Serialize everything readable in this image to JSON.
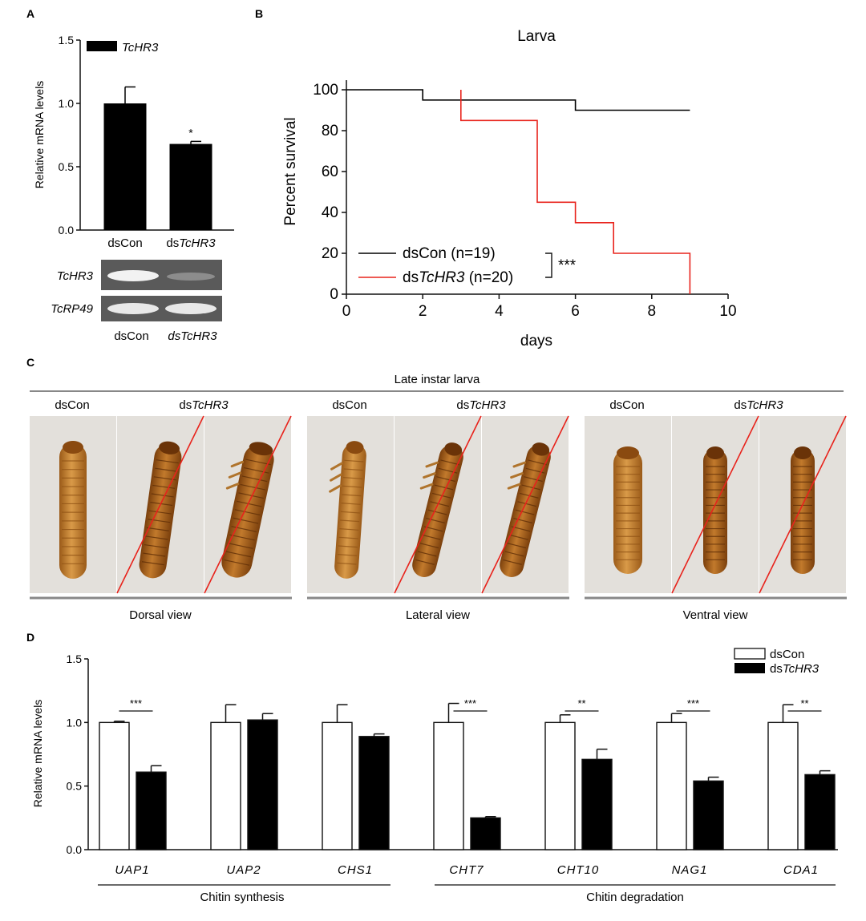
{
  "panels": {
    "a": "A",
    "b": "B",
    "c": "C",
    "d": "D"
  },
  "chart_data": [
    {
      "id": "A",
      "type": "bar",
      "ylabel": "Relative mRNA levels",
      "ylim": [
        0,
        1.5
      ],
      "yticks": [
        "0.0",
        "0.5",
        "1.0",
        "1.5"
      ],
      "categories": [
        "dsCon",
        "dsTcHR3"
      ],
      "category_labels": [
        {
          "prefix": "dsCon",
          "italic": ""
        },
        {
          "prefix": "ds",
          "italic": "TcHR3"
        }
      ],
      "values": [
        1.0,
        0.68
      ],
      "errors": [
        0.13,
        0.02
      ],
      "legend": "TcHR3",
      "significance": [
        "",
        "*"
      ]
    },
    {
      "id": "B",
      "type": "line",
      "title": "Larva",
      "xlabel": "days",
      "ylabel": "Percent survival",
      "xlim": [
        0,
        10
      ],
      "ylim": [
        0,
        100
      ],
      "xticks": [
        "0",
        "2",
        "4",
        "6",
        "8",
        "10"
      ],
      "yticks": [
        "0",
        "20",
        "40",
        "60",
        "80",
        "100"
      ],
      "series": [
        {
          "name": "dsCon (n=19)",
          "legend_prefix": "dsCon (n=19)",
          "legend_italic": "",
          "legend_suffix": "",
          "color": "#000000",
          "points": [
            [
              0,
              100
            ],
            [
              2,
              100
            ],
            [
              2,
              95
            ],
            [
              6,
              95
            ],
            [
              6,
              90
            ],
            [
              9,
              90
            ]
          ]
        },
        {
          "name": "dsTcHR3 (n=20)",
          "legend_prefix": "ds",
          "legend_italic": "TcHR3",
          "legend_suffix": " (n=20)",
          "color": "#e8231c",
          "points": [
            [
              3,
              100
            ],
            [
              3,
              85
            ],
            [
              5,
              85
            ],
            [
              5,
              45
            ],
            [
              6,
              45
            ],
            [
              6,
              35
            ],
            [
              7,
              35
            ],
            [
              7,
              20
            ],
            [
              9,
              20
            ],
            [
              9,
              0
            ]
          ]
        }
      ],
      "significance": "***"
    },
    {
      "id": "D",
      "type": "bar",
      "ylabel": "Relative mRNA levels",
      "ylim": [
        0,
        1.5
      ],
      "yticks": [
        "0.0",
        "0.5",
        "1.0",
        "1.5"
      ],
      "categories": [
        "UAP1",
        "UAP2",
        "CHS1",
        "CHT7",
        "CHT10",
        "NAG1",
        "CDA1"
      ],
      "series": [
        {
          "name": "dsCon",
          "legend_prefix": "dsCon",
          "legend_italic": "",
          "fill": "#ffffff",
          "values": [
            1.0,
            1.0,
            1.0,
            1.0,
            1.0,
            1.0,
            1.0
          ],
          "errors": [
            0.01,
            0.14,
            0.14,
            0.15,
            0.06,
            0.07,
            0.14
          ]
        },
        {
          "name": "dsTcHR3",
          "legend_prefix": "ds",
          "legend_italic": "TcHR3",
          "fill": "#000000",
          "values": [
            0.61,
            1.02,
            0.89,
            0.25,
            0.71,
            0.54,
            0.59
          ],
          "errors": [
            0.05,
            0.05,
            0.02,
            0.01,
            0.08,
            0.03,
            0.03
          ]
        }
      ],
      "significance": [
        "***",
        "",
        "",
        "***",
        "**",
        "***",
        "**"
      ],
      "groups": [
        "Chitin synthesis",
        "Chitin degradation"
      ]
    }
  ],
  "gel": {
    "rows": [
      "TcHR3",
      "TcRP49"
    ],
    "lanes": [
      {
        "prefix": "dsCon",
        "italic": ""
      },
      {
        "prefix": "ds",
        "italic": "TcHR3"
      }
    ]
  },
  "panel_c": {
    "title": "Late instar larva",
    "views": [
      "Dorsal view",
      "Lateral view",
      "Ventral view"
    ],
    "con_label": "dsCon",
    "treat_prefix": "ds",
    "treat_italic": "TcHR3"
  }
}
